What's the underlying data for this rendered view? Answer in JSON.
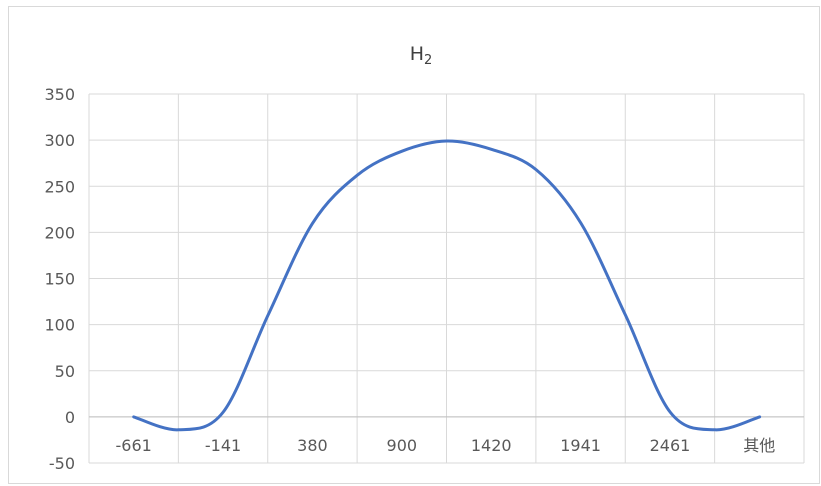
{
  "chart_data": {
    "type": "line",
    "title": "H",
    "title_subscript": "2",
    "xlabel": "",
    "ylabel": "",
    "categories": [
      "-661",
      "-141",
      "380",
      "900",
      "1420",
      "1941",
      "2461",
      "其他"
    ],
    "series": [
      {
        "color": "#4472c4",
        "points": [
          [
            -661,
            0
          ],
          [
            -401,
            -14
          ],
          [
            -141,
            5
          ],
          [
            120,
            110
          ],
          [
            380,
            210
          ],
          [
            640,
            262
          ],
          [
            900,
            288
          ],
          [
            1160,
            299
          ],
          [
            1420,
            290
          ],
          [
            1680,
            268
          ],
          [
            1941,
            210
          ],
          [
            2201,
            110
          ],
          [
            2461,
            5
          ],
          [
            2721,
            -14
          ],
          [
            2981,
            0
          ]
        ]
      }
    ],
    "ylim": [
      -50,
      350
    ],
    "yticks": [
      "350",
      "300",
      "250",
      "200",
      "150",
      "100",
      "50",
      "0",
      "-50"
    ],
    "grid": true,
    "smooth": true
  }
}
